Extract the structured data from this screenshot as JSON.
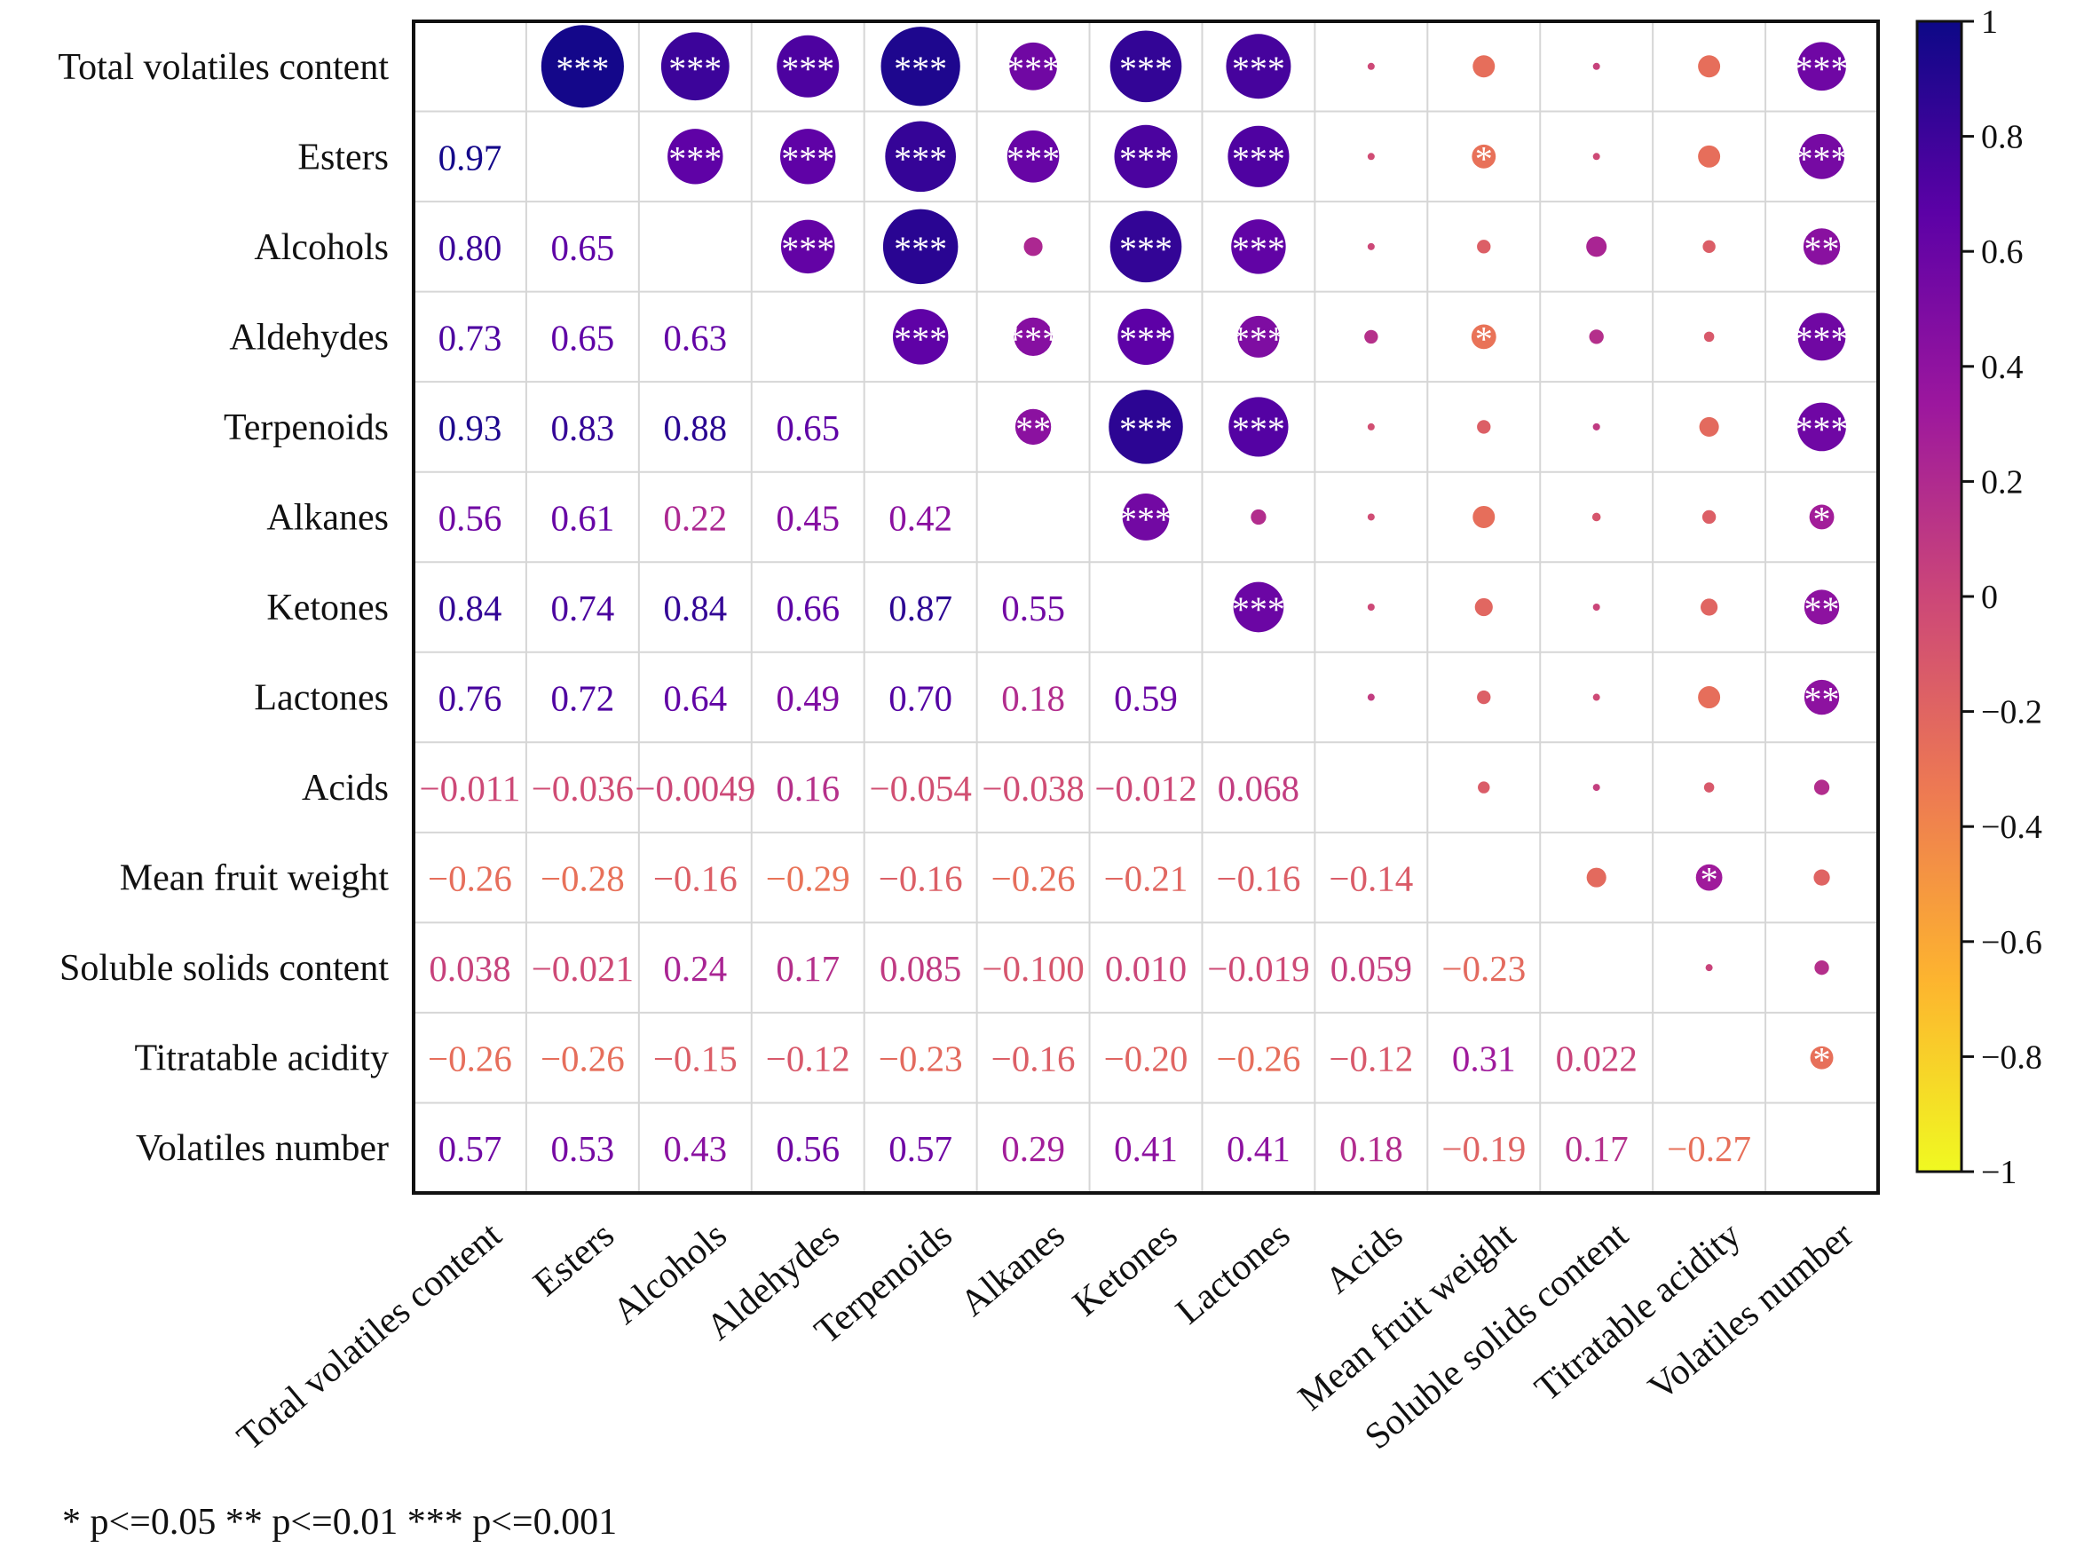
{
  "chart_data": {
    "type": "heatmap",
    "subtype": "correlation-matrix",
    "variables": [
      "Total volatiles content",
      "Esters",
      "Alcohols",
      "Aldehydes",
      "Terpenoids",
      "Alkanes",
      "Ketones",
      "Lactones",
      "Acids",
      "Mean fruit weight",
      "Soluble solids content",
      "Titratable acidity",
      "Volatiles number"
    ],
    "lower_labels": [
      [
        "",
        "",
        "",
        "",
        "",
        "",
        "",
        "",
        "",
        "",
        "",
        "",
        ""
      ],
      [
        "0.97",
        "",
        "",
        "",
        "",
        "",
        "",
        "",
        "",
        "",
        "",
        "",
        ""
      ],
      [
        "0.80",
        "0.65",
        "",
        "",
        "",
        "",
        "",
        "",
        "",
        "",
        "",
        "",
        ""
      ],
      [
        "0.73",
        "0.65",
        "0.63",
        "",
        "",
        "",
        "",
        "",
        "",
        "",
        "",
        "",
        ""
      ],
      [
        "0.93",
        "0.83",
        "0.88",
        "0.65",
        "",
        "",
        "",
        "",
        "",
        "",
        "",
        "",
        ""
      ],
      [
        "0.56",
        "0.61",
        "0.22",
        "0.45",
        "0.42",
        "",
        "",
        "",
        "",
        "",
        "",
        "",
        ""
      ],
      [
        "0.84",
        "0.74",
        "0.84",
        "0.66",
        "0.87",
        "0.55",
        "",
        "",
        "",
        "",
        "",
        "",
        ""
      ],
      [
        "0.76",
        "0.72",
        "0.64",
        "0.49",
        "0.70",
        "0.18",
        "0.59",
        "",
        "",
        "",
        "",
        "",
        ""
      ],
      [
        "−0.011",
        "−0.036",
        "−0.0049",
        "0.16",
        "−0.054",
        "−0.038",
        "−0.012",
        "0.068",
        "",
        "",
        "",
        "",
        ""
      ],
      [
        "−0.26",
        "−0.28",
        "−0.16",
        "−0.29",
        "−0.16",
        "−0.26",
        "−0.21",
        "−0.16",
        "−0.14",
        "",
        "",
        "",
        ""
      ],
      [
        "0.038",
        "−0.021",
        "0.24",
        "0.17",
        "0.085",
        "−0.100",
        "0.010",
        "−0.019",
        "0.059",
        "−0.23",
        "",
        "",
        ""
      ],
      [
        "−0.26",
        "−0.26",
        "−0.15",
        "−0.12",
        "−0.23",
        "−0.16",
        "−0.20",
        "−0.26",
        "−0.12",
        "0.31",
        "0.022",
        "",
        ""
      ],
      [
        "0.57",
        "0.53",
        "0.43",
        "0.56",
        "0.57",
        "0.29",
        "0.41",
        "0.41",
        "0.18",
        "−0.19",
        "0.17",
        "−0.27",
        ""
      ]
    ],
    "significance_upper": [
      [
        "",
        "***",
        "***",
        "***",
        "***",
        "***",
        "***",
        "***",
        "",
        "",
        "",
        "",
        "***"
      ],
      [
        "",
        "",
        "***",
        "***",
        "***",
        "***",
        "***",
        "***",
        "",
        "*",
        "",
        "",
        "***"
      ],
      [
        "",
        "",
        "",
        "***",
        "***",
        "",
        "***",
        "***",
        "",
        "",
        "",
        "",
        "**"
      ],
      [
        "",
        "",
        "",
        "",
        "***",
        "***",
        "***",
        "***",
        "",
        "*",
        "",
        "",
        "***"
      ],
      [
        "",
        "",
        "",
        "",
        "",
        "**",
        "***",
        "***",
        "",
        "",
        "",
        "",
        "***"
      ],
      [
        "",
        "",
        "",
        "",
        "",
        "",
        "***",
        "",
        "",
        "",
        "",
        "",
        "*"
      ],
      [
        "",
        "",
        "",
        "",
        "",
        "",
        "",
        "***",
        "",
        "",
        "",
        "",
        "**"
      ],
      [
        "",
        "",
        "",
        "",
        "",
        "",
        "",
        "",
        "",
        "",
        "",
        "",
        "**"
      ],
      [
        "",
        "",
        "",
        "",
        "",
        "",
        "",
        "",
        "",
        "",
        "",
        "",
        ""
      ],
      [
        "",
        "",
        "",
        "",
        "",
        "",
        "",
        "",
        "",
        "",
        "",
        "*",
        ""
      ],
      [
        "",
        "",
        "",
        "",
        "",
        "",
        "",
        "",
        "",
        "",
        "",
        "",
        ""
      ],
      [
        "",
        "",
        "",
        "",
        "",
        "",
        "",
        "",
        "",
        "",
        "",
        "",
        "*"
      ],
      [
        "",
        "",
        "",
        "",
        "",
        "",
        "",
        "",
        "",
        "",
        "",
        "",
        ""
      ]
    ],
    "colorbar": {
      "range": [
        -1,
        1
      ],
      "ticks": [
        "1",
        "0.8",
        "0.6",
        "0.4",
        "0.2",
        "0",
        "−0.2",
        "−0.4",
        "−0.6",
        "−0.8",
        "−1"
      ],
      "colormap": "plasma",
      "stops": [
        "#f0f921",
        "#fdb42f",
        "#ed7953",
        "#cc4778",
        "#9c179e",
        "#5c01a6",
        "#0d0887"
      ]
    },
    "footnote": "* p<=0.05 ** p<=0.01 *** p<=0.001",
    "lower_triangle": "correlation coefficients",
    "upper_triangle": "circles sized by |r|, colored by r, with significance stars"
  }
}
